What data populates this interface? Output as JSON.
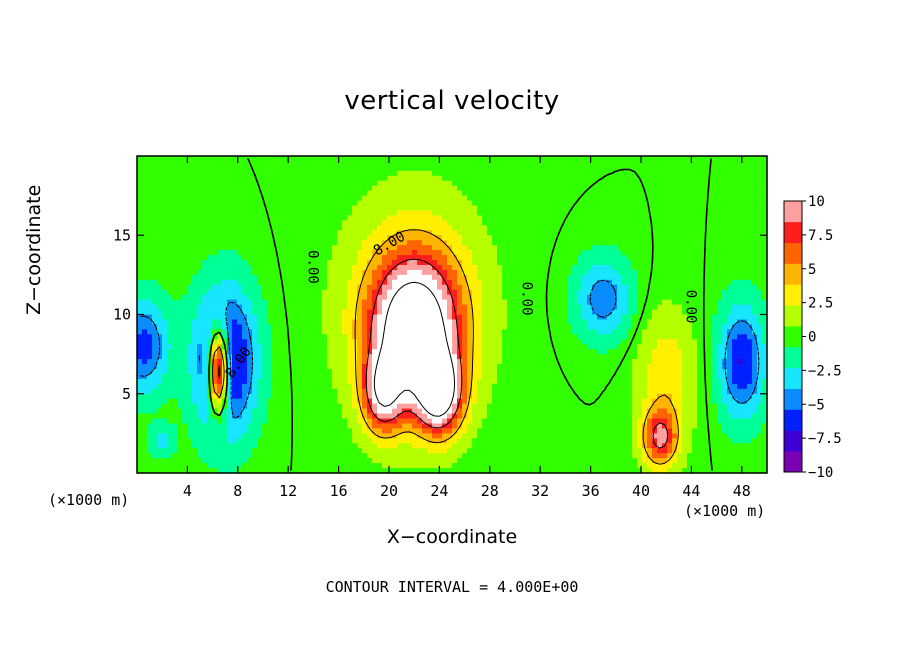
{
  "chart_data": {
    "type": "heatmap",
    "title": "vertical velocity",
    "xlabel": "X−coordinate",
    "ylabel": "Z−coordinate",
    "x_unit_label": "(×1000 m)",
    "contour_interval_text": "CONTOUR INTERVAL = 4.000E+00",
    "xlim": [
      0,
      50
    ],
    "ylim": [
      0,
      20
    ],
    "x_ticks": [
      4,
      8,
      12,
      16,
      20,
      24,
      28,
      32,
      36,
      40,
      44,
      48
    ],
    "y_ticks": [
      5,
      10,
      15
    ],
    "y_tick_labels": [
      "5",
      "10",
      "15"
    ],
    "x_tick_labels": [
      "4",
      "8",
      "12",
      "16",
      "20",
      "24",
      "28",
      "32",
      "36",
      "40",
      "44",
      "48"
    ],
    "colorbar": {
      "min": -10,
      "max": 10,
      "tick_values": [
        10,
        7.5,
        5,
        2.5,
        0,
        -2.5,
        -5,
        -7.5,
        -10
      ],
      "tick_labels": [
        "10",
        "7.5",
        "5",
        "2.5",
        "0",
        "−2.5",
        "−5",
        "−7.5",
        "−10"
      ]
    },
    "contour_labels": [
      {
        "text": "0.00",
        "x": 14,
        "z": 13,
        "rotation": 90
      },
      {
        "text": "8.00",
        "x": 20,
        "z": 14.5,
        "rotation": -30
      },
      {
        "text": "0.00",
        "x": 31,
        "z": 11,
        "rotation": 90
      },
      {
        "text": "0.00",
        "x": 44,
        "z": 10.5,
        "rotation": 90
      },
      {
        "text": "8.00",
        "x": 8,
        "z": 7,
        "rotation": -55
      }
    ],
    "features": [
      {
        "name": "main updraft",
        "x": 22,
        "z": 9,
        "peak": 14,
        "sx": 3.6,
        "sz": 4.6
      },
      {
        "name": "updraft lobe",
        "x": 24,
        "z": 5,
        "peak": 12,
        "sx": 1.8,
        "sz": 2.5
      },
      {
        "name": "updraft lobe",
        "x": 19.5,
        "z": 5,
        "peak": 9,
        "sx": 1.6,
        "sz": 2.5
      },
      {
        "name": "updraft halo",
        "x": 22,
        "z": 11,
        "peak": 3,
        "sx": 5.5,
        "sz": 6.5
      },
      {
        "name": "left downdraft",
        "x": 7,
        "z": 7,
        "peak": -9,
        "sx": 2.4,
        "sz": 4.5
      },
      {
        "name": "left updraft streak",
        "x": 6.5,
        "z": 6.5,
        "peak": 17,
        "sx": 0.8,
        "sz": 2.6
      },
      {
        "name": "far-left downdraft",
        "x": 0.5,
        "z": 8,
        "peak": -6,
        "sx": 2,
        "sz": 3
      },
      {
        "name": "right updraft",
        "x": 41.5,
        "z": 2.2,
        "peak": 8,
        "sx": 1.4,
        "sz": 1.8
      },
      {
        "name": "right updraft plume",
        "x": 42,
        "z": 6,
        "peak": 3.5,
        "sx": 2.2,
        "sz": 4
      },
      {
        "name": "right downdraft",
        "x": 37,
        "z": 11,
        "peak": -5,
        "sx": 2.2,
        "sz": 2.5
      },
      {
        "name": "far-right downdraft",
        "x": 48,
        "z": 7,
        "peak": -7,
        "sx": 1.8,
        "sz": 3.5
      },
      {
        "name": "small downdraft",
        "x": 2,
        "z": 2,
        "peak": -3,
        "sx": 1,
        "sz": 1
      }
    ],
    "colors": [
      "#7a00b4",
      "#3c00d6",
      "#0020ff",
      "#0a8cff",
      "#18e6ff",
      "#00ff96",
      "#32ff00",
      "#b4ff00",
      "#fff000",
      "#ffb400",
      "#ff6400",
      "#ff1e1e",
      "#ffa0a0",
      "#ffffff"
    ]
  }
}
